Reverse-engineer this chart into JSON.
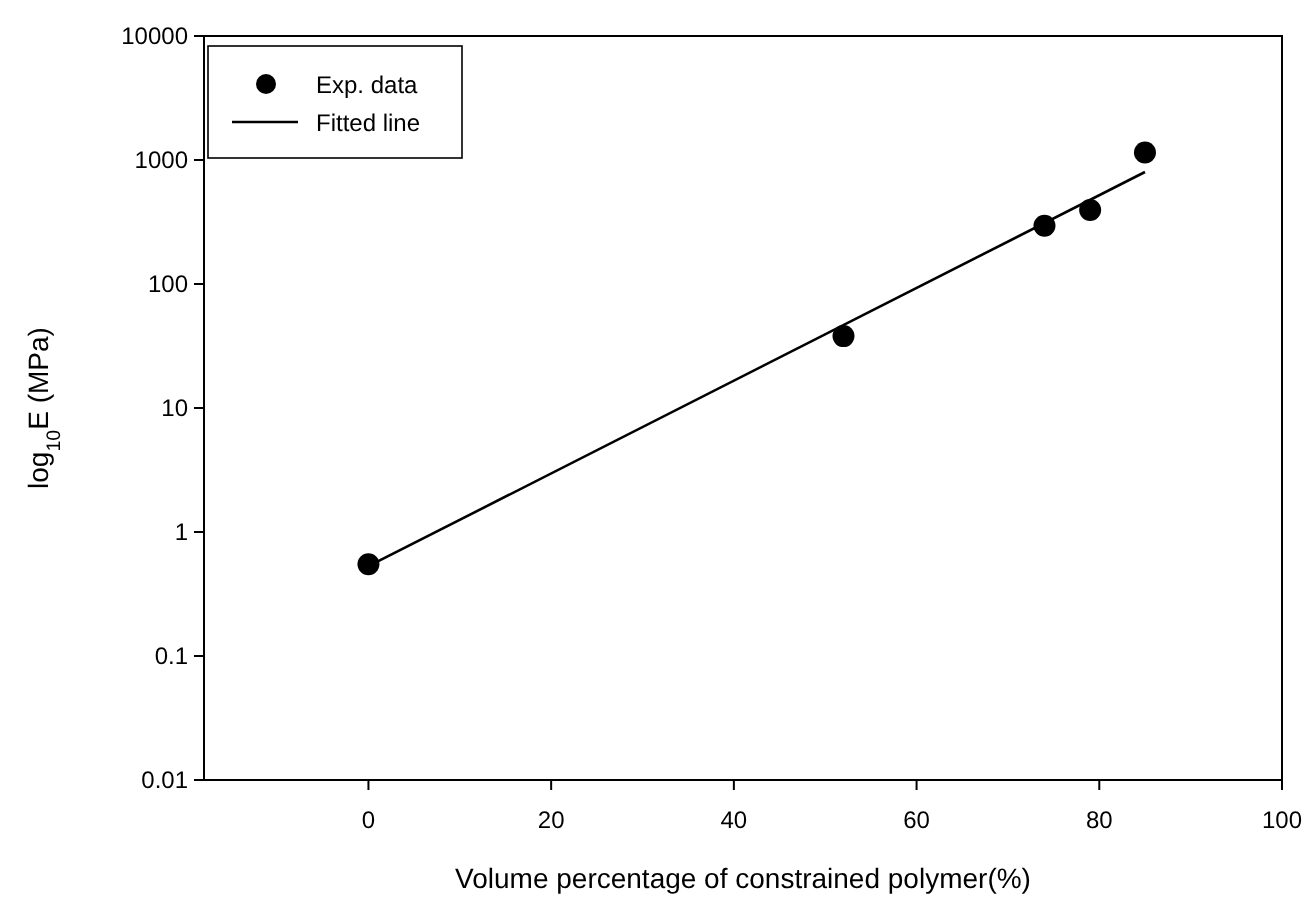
{
  "chart_data": {
    "type": "scatter",
    "xlabel": "Volume percentage of constrained polymer(%)",
    "ylabel": "log$_{10}$E (MPa)",
    "log": "y",
    "xlim": [
      -18,
      100
    ],
    "xticks": [
      0,
      20,
      40,
      60,
      80,
      100
    ],
    "ylim": [
      0.01,
      10000
    ],
    "yticks": [
      0.01,
      0.1,
      1,
      10,
      100,
      1000,
      10000
    ],
    "legend": "top left",
    "grid": false,
    "series": [
      {
        "name": "Exp. data",
        "color": "#000000",
        "marker": "circle",
        "x": [
          0,
          52,
          74,
          79,
          85
        ],
        "values": [
          0.55,
          38,
          295,
          395,
          1150
        ]
      },
      {
        "name": "Fitted line",
        "type": "line",
        "color": "#000000",
        "marker": "none",
        "x": [
          0,
          85
        ],
        "values": [
          0.53,
          800
        ]
      }
    ]
  }
}
